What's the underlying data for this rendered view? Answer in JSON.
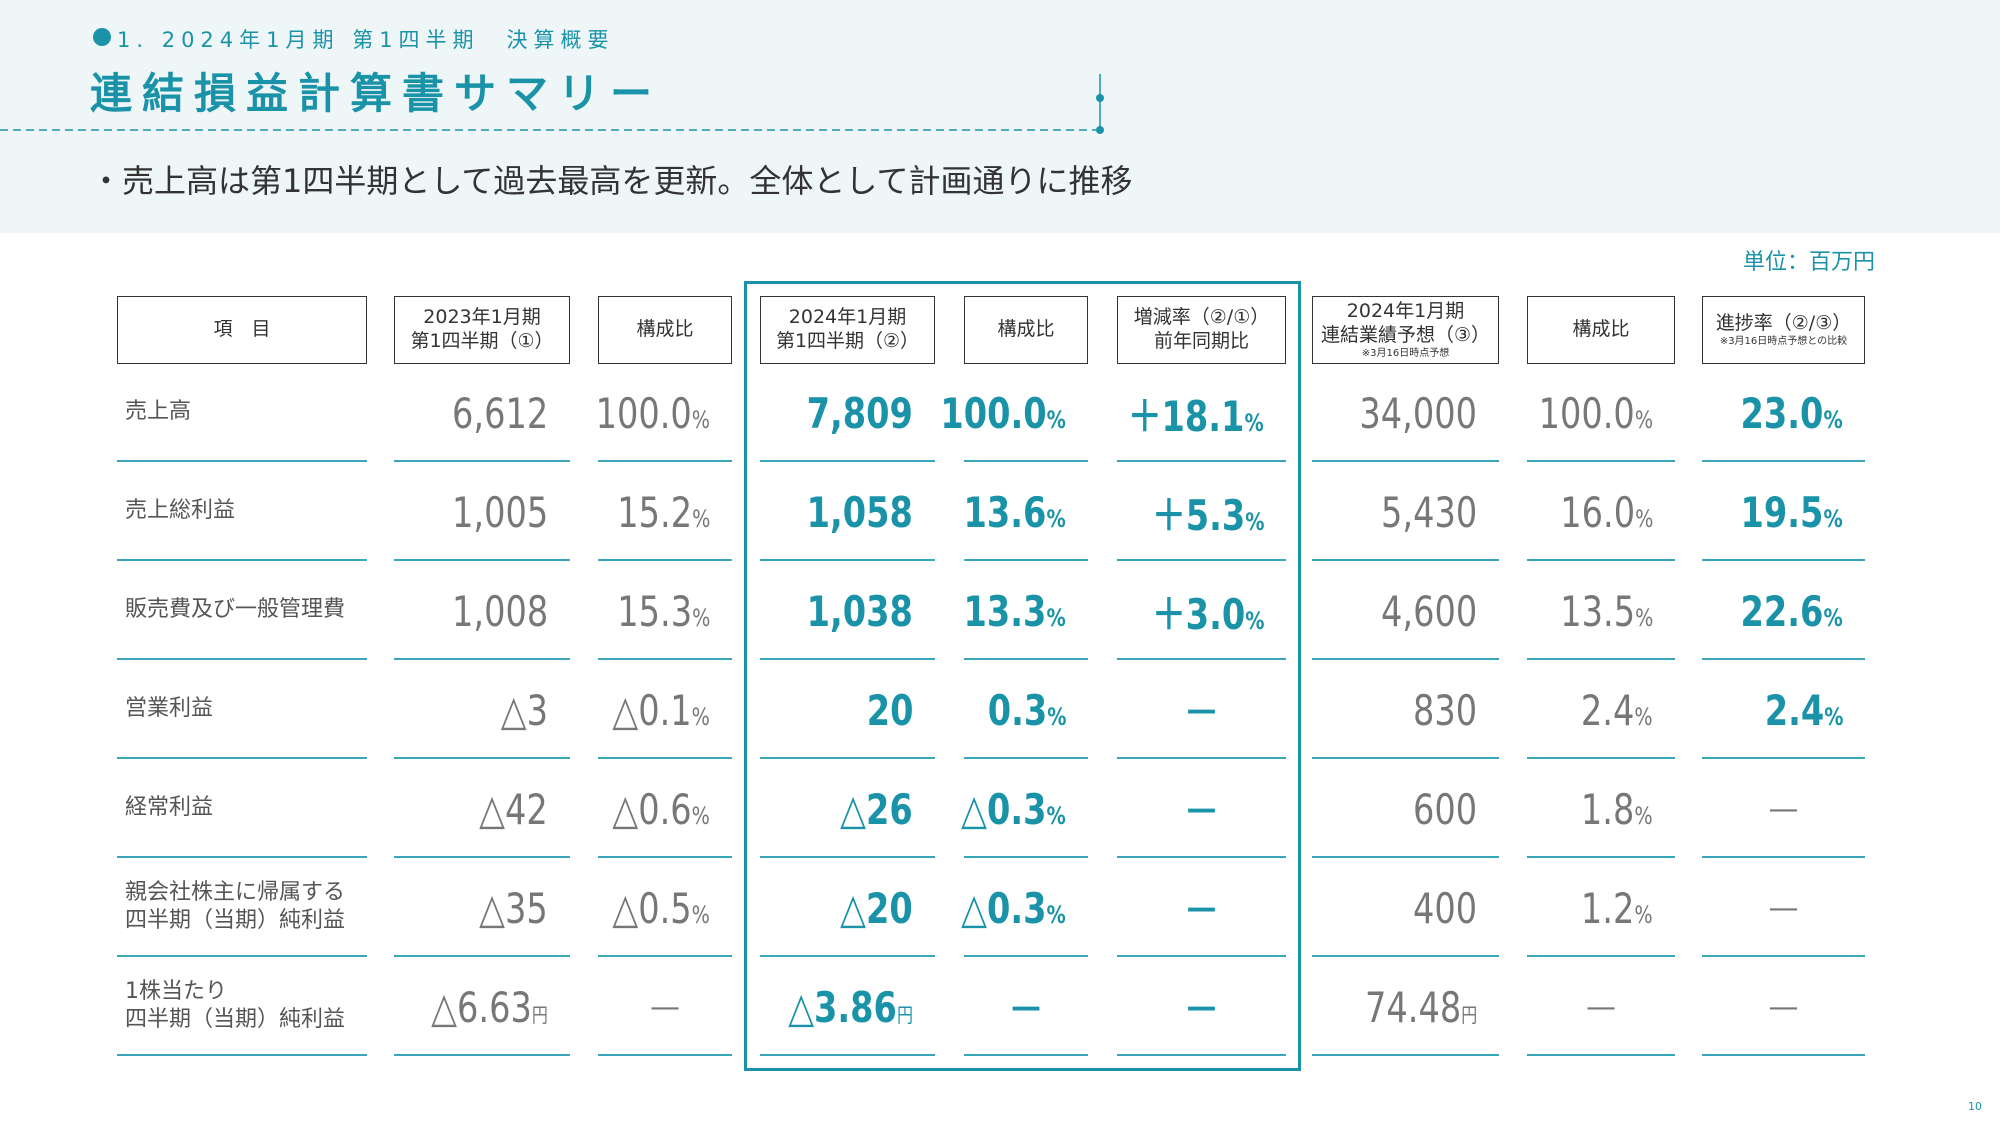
{
  "header": {
    "section": "1. 2024年1月期 第1四半期　決算概要",
    "title": "連結損益計算書サマリー",
    "bullet": "・売上高は第1四半期として過去最高を更新。全体として計画通りに推移"
  },
  "unit": "単位：百万円",
  "table": {
    "columns": [
      {
        "lines": [
          "項　目"
        ]
      },
      {
        "lines": [
          "2023年1月期",
          "第1四半期（①）"
        ]
      },
      {
        "lines": [
          "構成比"
        ]
      },
      {
        "lines": [
          "2024年1月期",
          "第1四半期（②）"
        ]
      },
      {
        "lines": [
          "構成比"
        ]
      },
      {
        "lines": [
          "増減率（②/①）",
          "前年同期比"
        ]
      },
      {
        "lines": [
          "2024年1月期",
          "連結業績予想（③）"
        ],
        "note": "※3月16日時点予想"
      },
      {
        "lines": [
          "構成比"
        ]
      },
      {
        "lines": [
          "進捗率（②/③）"
        ],
        "note": "※3月16日時点予想との比較"
      }
    ],
    "rows": [
      {
        "label": [
          "売上高"
        ],
        "cells": [
          {
            "num": "6,612"
          },
          {
            "num": "100.0",
            "unit": "%"
          },
          {
            "num": "7,809"
          },
          {
            "num": "100.0",
            "unit": "%"
          },
          {
            "num": "＋18.1",
            "unit": "%"
          },
          {
            "num": "34,000"
          },
          {
            "num": "100.0",
            "unit": "%"
          },
          {
            "num": "23.0",
            "unit": "%"
          }
        ]
      },
      {
        "label": [
          "売上総利益"
        ],
        "cells": [
          {
            "num": "1,005"
          },
          {
            "num": "15.2",
            "unit": "%"
          },
          {
            "num": "1,058"
          },
          {
            "num": "13.6",
            "unit": "%"
          },
          {
            "num": "＋5.3",
            "unit": "%"
          },
          {
            "num": "5,430"
          },
          {
            "num": "16.0",
            "unit": "%"
          },
          {
            "num": "19.5",
            "unit": "%"
          }
        ]
      },
      {
        "label": [
          "販売費及び一般管理費"
        ],
        "cells": [
          {
            "num": "1,008"
          },
          {
            "num": "15.3",
            "unit": "%"
          },
          {
            "num": "1,038"
          },
          {
            "num": "13.3",
            "unit": "%"
          },
          {
            "num": "＋3.0",
            "unit": "%"
          },
          {
            "num": "4,600"
          },
          {
            "num": "13.5",
            "unit": "%"
          },
          {
            "num": "22.6",
            "unit": "%"
          }
        ]
      },
      {
        "label": [
          "営業利益"
        ],
        "cells": [
          {
            "num": "△3"
          },
          {
            "num": "△0.1",
            "unit": "%"
          },
          {
            "num": "20"
          },
          {
            "num": "0.3",
            "unit": "%"
          },
          {
            "num": "—"
          },
          {
            "num": "830"
          },
          {
            "num": "2.4",
            "unit": "%"
          },
          {
            "num": "2.4",
            "unit": "%"
          }
        ]
      },
      {
        "label": [
          "経常利益"
        ],
        "cells": [
          {
            "num": "△42"
          },
          {
            "num": "△0.6",
            "unit": "%"
          },
          {
            "num": "△26"
          },
          {
            "num": "△0.3",
            "unit": "%"
          },
          {
            "num": "—"
          },
          {
            "num": "600"
          },
          {
            "num": "1.8",
            "unit": "%"
          },
          {
            "num": "—"
          }
        ]
      },
      {
        "label": [
          "親会社株主に帰属する",
          "四半期（当期）純利益"
        ],
        "cells": [
          {
            "num": "△35"
          },
          {
            "num": "△0.5",
            "unit": "%"
          },
          {
            "num": "△20"
          },
          {
            "num": "△0.3",
            "unit": "%"
          },
          {
            "num": "—"
          },
          {
            "num": "400"
          },
          {
            "num": "1.2",
            "unit": "%"
          },
          {
            "num": "—"
          }
        ]
      },
      {
        "label": [
          "1株当たり",
          "四半期（当期）純利益"
        ],
        "cells": [
          {
            "num": "△6.63",
            "unit": "円"
          },
          {
            "num": "—"
          },
          {
            "num": "△3.86",
            "unit": "円"
          },
          {
            "num": "—"
          },
          {
            "num": "—"
          },
          {
            "num": "74.48",
            "unit": "円"
          },
          {
            "num": "—"
          },
          {
            "num": "—"
          }
        ]
      }
    ]
  },
  "page_number": "10"
}
